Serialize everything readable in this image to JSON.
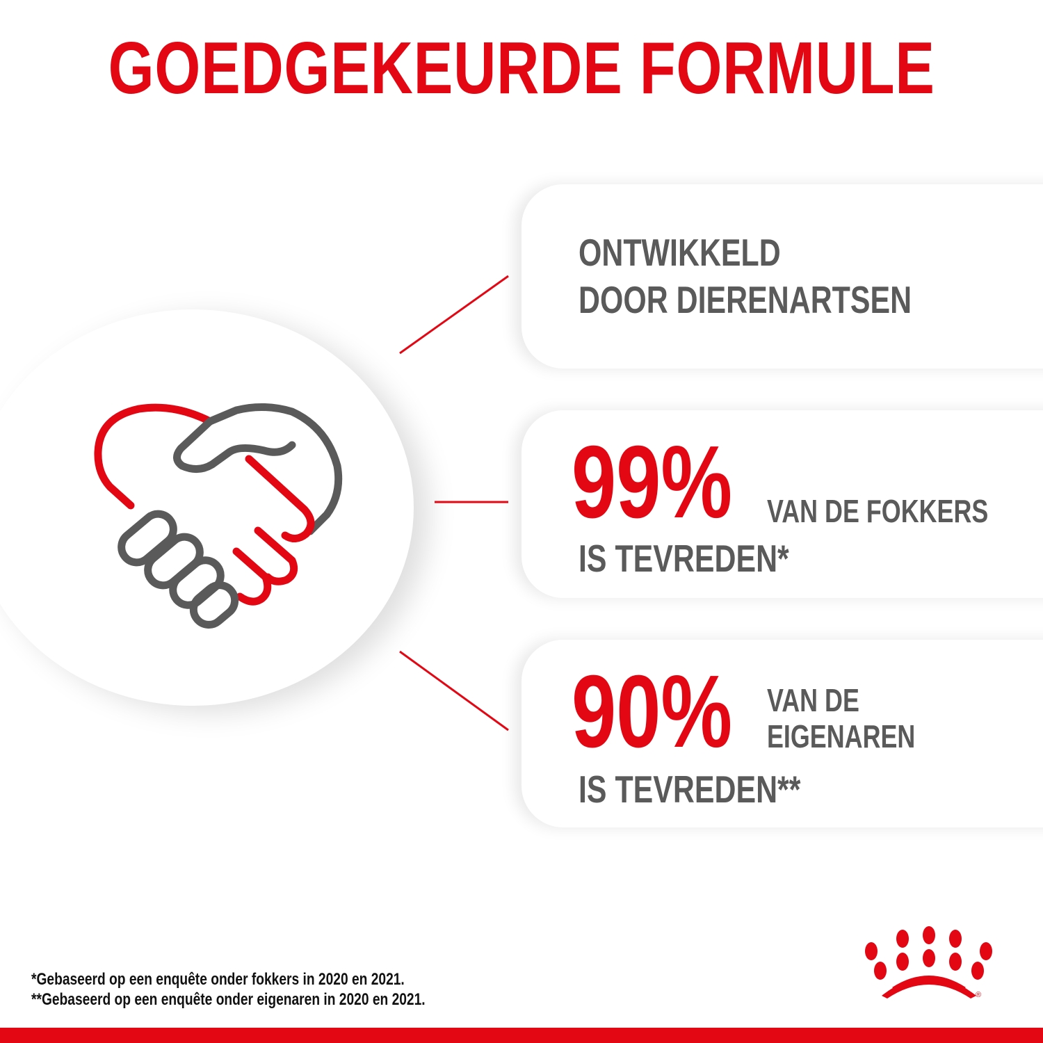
{
  "title": "GOEDGEKEURDE FORMULE",
  "cards": [
    {
      "line1": "ONTWIKKELD",
      "line2": "DOOR DIERENARTSEN"
    },
    {
      "percent": "99%",
      "side": "VAN DE FOKKERS",
      "bottom": "IS TEVREDEN*"
    },
    {
      "percent": "90%",
      "side1": "VAN DE",
      "side2": "EIGENAREN",
      "bottom": "IS TEVREDEN**"
    }
  ],
  "footnotes": [
    "*Gebaseerd op een enquête onder fokkers in 2020 en 2021.",
    "**Gebaseerd op een enquête onder eigenaren in 2020 en 2021."
  ],
  "logo": {
    "registered": "®"
  },
  "colors": {
    "accent": "#e30613",
    "text": "#5a5a5a"
  },
  "icons": {
    "main": "handshake-heart-icon",
    "brand": "royal-canin-crown-logo"
  }
}
